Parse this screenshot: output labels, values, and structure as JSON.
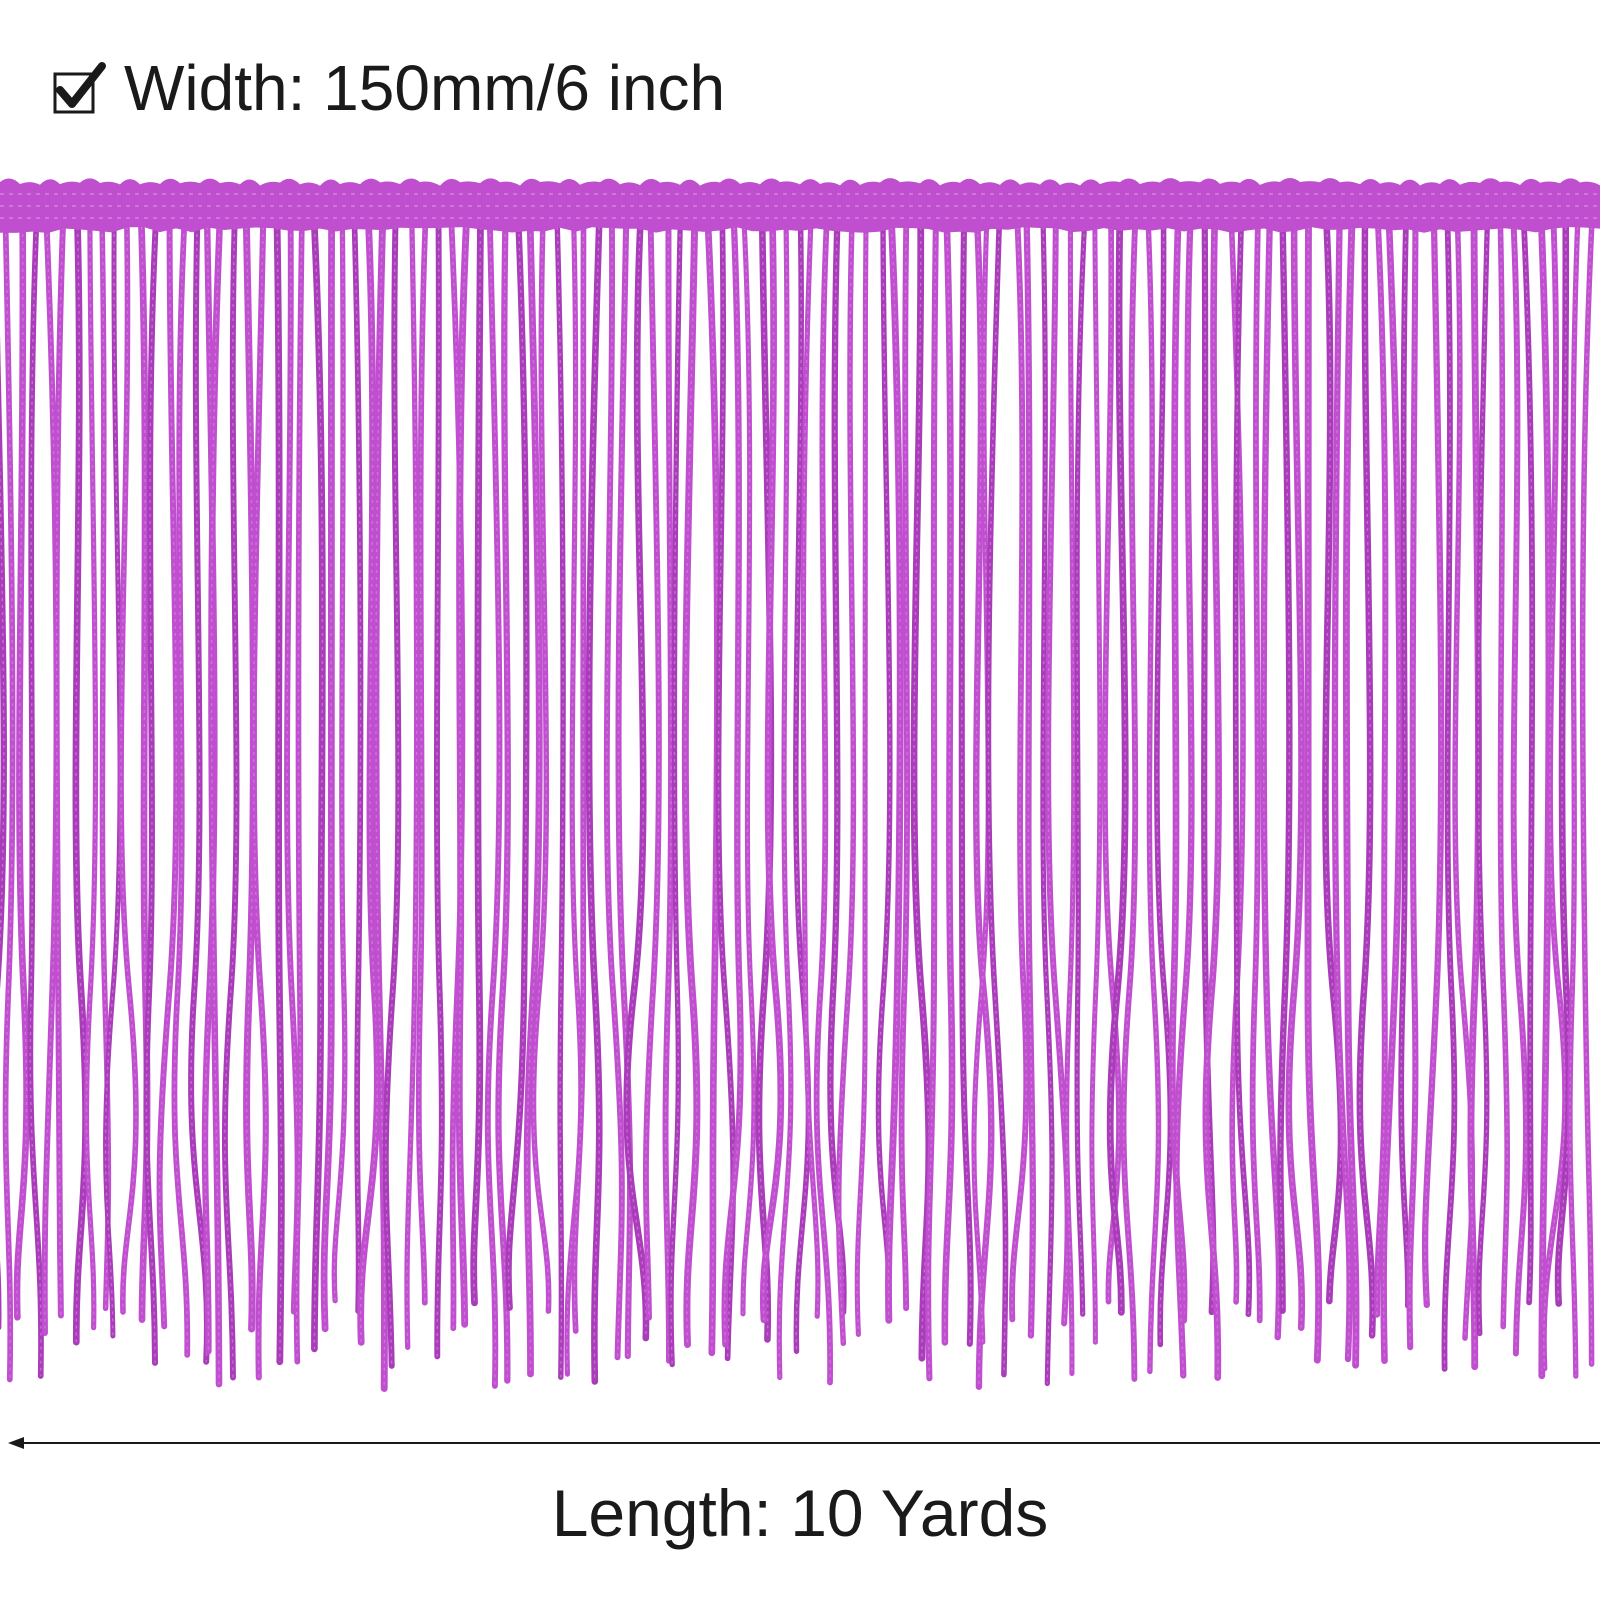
{
  "caption": {
    "width_text": "Width: 150mm/6 inch",
    "icon": "checkbox-checked-icon"
  },
  "footer": {
    "length_text": "Length: 10 Yards"
  },
  "colors": {
    "fringe": "#c04fcf",
    "fringe_dark": "#a93cb9",
    "fringe_light": "#d77fe0",
    "text": "#1a1a1a"
  }
}
